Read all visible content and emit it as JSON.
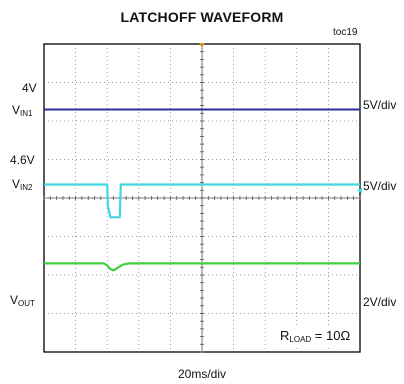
{
  "title": "LATCHOFF WAVEFORM",
  "figure_id": "toc19",
  "timebase": "20ms/div",
  "annotation": {
    "prefix": "R",
    "sub": "LOAD",
    "suffix": " = 10Ω"
  },
  "channels": [
    {
      "label": "V",
      "sub": "IN1",
      "level": "4V",
      "scale": "5V/div",
      "color": "#2a2f9a"
    },
    {
      "label": "V",
      "sub": "IN2",
      "level": "4.6V",
      "scale": "5V/div",
      "color": "#3fd6e0"
    },
    {
      "label": "V",
      "sub": "OUT",
      "level": "",
      "scale": "2V/div",
      "color": "#3fcf3f"
    }
  ],
  "chart_data": {
    "type": "line",
    "title": "LATCHOFF WAVEFORM",
    "x_divisions": 10,
    "y_divisions": 8,
    "x_scale": "20ms/div",
    "grid": true,
    "series": [
      {
        "name": "VIN1",
        "scale": "5V/div",
        "points": [
          [
            0,
            6.3
          ],
          [
            10,
            6.3
          ]
        ]
      },
      {
        "name": "VIN2",
        "scale": "5V/div",
        "points": [
          [
            0,
            4.35
          ],
          [
            2.0,
            4.35
          ],
          [
            2.02,
            3.8
          ],
          [
            2.1,
            3.5
          ],
          [
            2.4,
            3.5
          ],
          [
            2.43,
            4.35
          ],
          [
            10,
            4.35
          ]
        ]
      },
      {
        "name": "VOUT",
        "scale": "2V/div",
        "points": [
          [
            0,
            2.3
          ],
          [
            1.9,
            2.3
          ],
          [
            2.0,
            2.25
          ],
          [
            2.1,
            2.15
          ],
          [
            2.2,
            2.12
          ],
          [
            2.35,
            2.2
          ],
          [
            2.5,
            2.27
          ],
          [
            2.7,
            2.3
          ],
          [
            10,
            2.3
          ]
        ]
      }
    ]
  }
}
